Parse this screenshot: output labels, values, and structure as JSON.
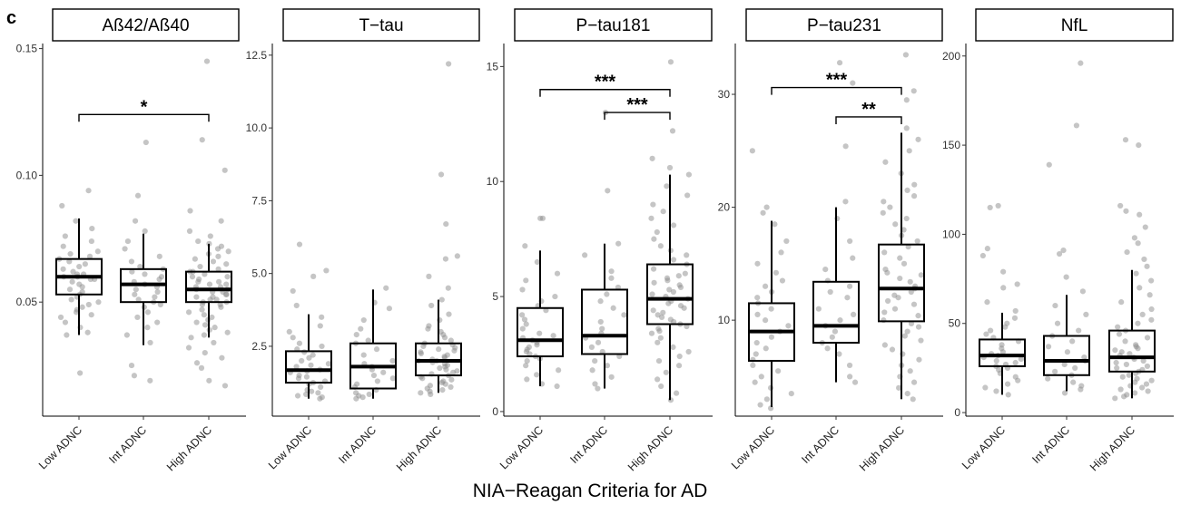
{
  "figure": {
    "panel_letter": "c",
    "xlabel": "NIA−Reagan Criteria for AD",
    "colors": {
      "point": "#8c8c8c",
      "box": "#000000",
      "background": "#ffffff"
    }
  },
  "chart_data": [
    {
      "type": "box",
      "title": "Aß42/Aß40",
      "categories": [
        "Low ADNC",
        "Int ADNC",
        "High ADNC"
      ],
      "ylim": [
        0.005,
        0.152
      ],
      "yticks": [
        0.05,
        0.1,
        0.15
      ],
      "ytick_labels": [
        "0.05",
        "0.10",
        "0.15"
      ],
      "boxes": [
        {
          "category": "Low ADNC",
          "min": 0.037,
          "q1": 0.053,
          "median": 0.06,
          "q3": 0.067,
          "max": 0.083
        },
        {
          "category": "Int ADNC",
          "min": 0.033,
          "q1": 0.05,
          "median": 0.057,
          "q3": 0.063,
          "max": 0.077
        },
        {
          "category": "High ADNC",
          "min": 0.036,
          "q1": 0.05,
          "median": 0.055,
          "q3": 0.062,
          "max": 0.073
        }
      ],
      "points": [
        [
          0.094,
          0.088,
          0.082,
          0.079,
          0.076,
          0.074,
          0.072,
          0.07,
          0.069,
          0.068,
          0.067,
          0.066,
          0.065,
          0.064,
          0.063,
          0.062,
          0.061,
          0.061,
          0.06,
          0.06,
          0.059,
          0.059,
          0.058,
          0.057,
          0.056,
          0.055,
          0.054,
          0.053,
          0.052,
          0.051,
          0.05,
          0.049,
          0.048,
          0.047,
          0.046,
          0.045,
          0.044,
          0.042,
          0.04,
          0.038,
          0.037,
          0.022
        ],
        [
          0.113,
          0.092,
          0.082,
          0.078,
          0.074,
          0.071,
          0.068,
          0.066,
          0.064,
          0.063,
          0.062,
          0.061,
          0.06,
          0.059,
          0.058,
          0.057,
          0.056,
          0.055,
          0.054,
          0.053,
          0.052,
          0.051,
          0.05,
          0.049,
          0.048,
          0.046,
          0.044,
          0.042,
          0.04,
          0.037,
          0.034,
          0.025,
          0.021,
          0.019
        ],
        [
          0.145,
          0.114,
          0.102,
          0.086,
          0.082,
          0.078,
          0.076,
          0.074,
          0.073,
          0.072,
          0.071,
          0.07,
          0.069,
          0.068,
          0.067,
          0.066,
          0.065,
          0.064,
          0.063,
          0.062,
          0.062,
          0.061,
          0.06,
          0.06,
          0.059,
          0.058,
          0.058,
          0.057,
          0.057,
          0.056,
          0.056,
          0.055,
          0.055,
          0.054,
          0.054,
          0.053,
          0.053,
          0.052,
          0.052,
          0.051,
          0.051,
          0.05,
          0.05,
          0.049,
          0.049,
          0.048,
          0.047,
          0.046,
          0.045,
          0.044,
          0.043,
          0.042,
          0.041,
          0.04,
          0.039,
          0.038,
          0.037,
          0.036,
          0.034,
          0.032,
          0.03,
          0.028,
          0.026,
          0.024,
          0.019,
          0.017
        ]
      ],
      "significance": [
        {
          "from": "Low ADNC",
          "to": "High ADNC",
          "y": 0.124,
          "label": "*"
        }
      ]
    },
    {
      "type": "box",
      "title": "T−tau",
      "categories": [
        "Low ADNC",
        "Int ADNC",
        "High ADNC"
      ],
      "ylim": [
        0.1,
        12.9
      ],
      "yticks": [
        2.5,
        5.0,
        7.5,
        10.0,
        12.5
      ],
      "ytick_labels": [
        "2.5",
        "5.0",
        "7.5",
        "10.0",
        "12.5"
      ],
      "boxes": [
        {
          "category": "Low ADNC",
          "min": 0.7,
          "q1": 1.25,
          "median": 1.68,
          "q3": 2.33,
          "max": 3.6
        },
        {
          "category": "Int ADNC",
          "min": 0.7,
          "q1": 1.05,
          "median": 1.8,
          "q3": 2.6,
          "max": 4.45
        },
        {
          "category": "High ADNC",
          "min": 0.9,
          "q1": 1.5,
          "median": 2.0,
          "q3": 2.6,
          "max": 4.1
        }
      ],
      "points": [
        [
          6.0,
          5.1,
          4.9,
          4.4,
          3.9,
          3.5,
          3.2,
          3.0,
          2.8,
          2.6,
          2.5,
          2.4,
          2.3,
          2.2,
          2.1,
          2.0,
          1.9,
          1.85,
          1.8,
          1.7,
          1.65,
          1.6,
          1.5,
          1.45,
          1.4,
          1.3,
          1.25,
          1.2,
          1.1,
          1.0,
          0.95,
          0.9,
          0.85,
          0.8,
          0.75,
          0.7
        ],
        [
          4.5,
          4.0,
          3.8,
          3.4,
          3.1,
          2.9,
          2.7,
          2.6,
          2.4,
          2.2,
          2.0,
          1.9,
          1.8,
          1.7,
          1.6,
          1.5,
          1.4,
          1.3,
          1.2,
          1.1,
          1.0,
          0.9,
          0.85,
          0.8,
          0.75,
          0.7
        ],
        [
          12.2,
          8.4,
          6.7,
          5.6,
          5.5,
          4.9,
          4.5,
          4.1,
          3.9,
          3.6,
          3.4,
          3.2,
          3.1,
          3.0,
          2.9,
          2.8,
          2.7,
          2.6,
          2.55,
          2.5,
          2.45,
          2.4,
          2.35,
          2.3,
          2.25,
          2.2,
          2.15,
          2.1,
          2.05,
          2.0,
          2.0,
          1.95,
          1.9,
          1.85,
          1.8,
          1.75,
          1.7,
          1.65,
          1.6,
          1.55,
          1.5,
          1.45,
          1.4,
          1.35,
          1.3,
          1.25,
          1.2,
          1.15,
          1.1,
          1.05,
          1.0,
          0.95,
          0.9,
          0.85
        ]
      ],
      "significance": []
    },
    {
      "type": "box",
      "title": "P−tau181",
      "categories": [
        "Low ADNC",
        "Int ADNC",
        "High ADNC"
      ],
      "ylim": [
        -0.2,
        16.0
      ],
      "yticks": [
        0,
        5,
        10,
        15
      ],
      "ytick_labels": [
        "0",
        "5",
        "10",
        "15"
      ],
      "boxes": [
        {
          "category": "Low ADNC",
          "min": 1.1,
          "q1": 2.4,
          "median": 3.1,
          "q3": 4.5,
          "max": 7.0
        },
        {
          "category": "Int ADNC",
          "min": 1.0,
          "q1": 2.5,
          "median": 3.3,
          "q3": 5.3,
          "max": 7.3
        },
        {
          "category": "High ADNC",
          "min": 0.5,
          "q1": 3.8,
          "median": 4.9,
          "q3": 6.4,
          "max": 10.3
        }
      ],
      "points": [
        [
          8.4,
          8.4,
          7.2,
          6.5,
          6.0,
          5.7,
          5.3,
          5.0,
          4.8,
          4.6,
          4.4,
          4.2,
          4.0,
          3.8,
          3.6,
          3.4,
          3.3,
          3.2,
          3.1,
          3.0,
          2.9,
          2.8,
          2.7,
          2.6,
          2.5,
          2.4,
          2.3,
          2.2,
          2.0,
          1.8,
          1.6,
          1.4,
          1.2,
          1.1
        ],
        [
          13.0,
          9.6,
          7.3,
          6.8,
          6.1,
          5.8,
          5.4,
          5.1,
          4.8,
          4.5,
          4.2,
          3.9,
          3.6,
          3.4,
          3.2,
          3.0,
          2.8,
          2.6,
          2.4,
          2.2,
          2.0,
          1.8,
          1.5,
          1.2,
          1.0
        ],
        [
          15.2,
          12.2,
          11.0,
          10.6,
          10.3,
          9.8,
          9.4,
          9.0,
          8.7,
          8.4,
          8.1,
          7.8,
          7.5,
          7.2,
          7.0,
          6.8,
          6.6,
          6.4,
          6.2,
          6.0,
          5.9,
          5.8,
          5.7,
          5.6,
          5.5,
          5.4,
          5.3,
          5.2,
          5.1,
          5.0,
          4.9,
          4.8,
          4.7,
          4.6,
          4.5,
          4.4,
          4.3,
          4.2,
          4.1,
          4.0,
          3.9,
          3.8,
          3.7,
          3.6,
          3.5,
          3.4,
          3.2,
          3.0,
          2.8,
          2.6,
          2.4,
          2.2,
          2.0,
          1.7,
          1.4,
          1.1,
          0.8,
          0.5
        ]
      ],
      "significance": [
        {
          "from": "Low ADNC",
          "to": "High ADNC",
          "y": 14.0,
          "label": "***"
        },
        {
          "from": "Int ADNC",
          "to": "High ADNC",
          "y": 13.0,
          "label": "***"
        }
      ]
    },
    {
      "type": "box",
      "title": "P−tau231",
      "categories": [
        "Low ADNC",
        "Int ADNC",
        "High ADNC"
      ],
      "ylim": [
        1.5,
        34.5
      ],
      "yticks": [
        10,
        20,
        30
      ],
      "ytick_labels": [
        "10",
        "20",
        "30"
      ],
      "boxes": [
        {
          "category": "Low ADNC",
          "min": 2.3,
          "q1": 6.4,
          "median": 9.0,
          "q3": 11.5,
          "max": 18.8
        },
        {
          "category": "Int ADNC",
          "min": 4.5,
          "q1": 8.0,
          "median": 9.5,
          "q3": 13.4,
          "max": 20.0
        },
        {
          "category": "High ADNC",
          "min": 3.0,
          "q1": 9.9,
          "median": 12.8,
          "q3": 16.7,
          "max": 26.6
        }
      ],
      "points": [
        [
          25.0,
          20.0,
          19.5,
          18.5,
          17.0,
          16.0,
          15.0,
          14.2,
          13.5,
          13.0,
          12.5,
          12.0,
          11.5,
          11.0,
          10.5,
          10.0,
          9.5,
          9.0,
          8.5,
          8.0,
          7.5,
          7.0,
          6.5,
          6.0,
          5.5,
          5.0,
          4.5,
          4.0,
          3.5,
          3.0,
          2.5,
          2.2
        ],
        [
          32.8,
          31.0,
          25.4,
          20.5,
          19.0,
          17.0,
          15.5,
          14.5,
          13.5,
          13.0,
          12.5,
          12.0,
          11.0,
          10.5,
          10.0,
          9.5,
          9.0,
          8.5,
          8.0,
          7.5,
          7.0,
          6.0,
          5.0,
          4.5
        ],
        [
          33.5,
          30.3,
          29.5,
          27.0,
          26.0,
          25.0,
          24.0,
          23.0,
          22.0,
          21.5,
          21.0,
          20.5,
          20.0,
          19.5,
          19.0,
          18.5,
          18.0,
          17.5,
          17.0,
          16.5,
          16.0,
          15.5,
          15.0,
          14.5,
          14.2,
          14.0,
          13.7,
          13.4,
          13.0,
          12.8,
          12.5,
          12.2,
          12.0,
          11.7,
          11.4,
          11.0,
          10.7,
          10.4,
          10.0,
          9.7,
          9.4,
          9.0,
          8.6,
          8.2,
          7.8,
          7.4,
          7.0,
          6.5,
          6.0,
          5.5,
          5.0,
          4.5,
          4.0,
          3.5,
          3.0
        ]
      ],
      "significance": [
        {
          "from": "Low ADNC",
          "to": "High ADNC",
          "y": 30.6,
          "label": "***"
        },
        {
          "from": "Int ADNC",
          "to": "High ADNC",
          "y": 28.0,
          "label": "**"
        }
      ]
    },
    {
      "type": "box",
      "title": "NfL",
      "categories": [
        "Low ADNC",
        "Int ADNC",
        "High ADNC"
      ],
      "ylim": [
        -2,
        207
      ],
      "yticks": [
        0,
        50,
        100,
        150,
        200
      ],
      "ytick_labels": [
        "0",
        "50",
        "100",
        "150",
        "200"
      ],
      "boxes": [
        {
          "category": "Low ADNC",
          "min": 10,
          "q1": 26,
          "median": 32,
          "q3": 41,
          "max": 56
        },
        {
          "category": "Int ADNC",
          "min": 12,
          "q1": 21,
          "median": 29,
          "q3": 43,
          "max": 66
        },
        {
          "category": "High ADNC",
          "min": 8,
          "q1": 23,
          "median": 31,
          "q3": 46,
          "max": 80
        }
      ],
      "points": [
        [
          116,
          115,
          92,
          88,
          79,
          72,
          70,
          62,
          57,
          53,
          50,
          48,
          46,
          44,
          42,
          40,
          38,
          36,
          34,
          33,
          32,
          31,
          30,
          29,
          28,
          27,
          26,
          25,
          24,
          22,
          20,
          18,
          16,
          14,
          12,
          10
        ],
        [
          196,
          161,
          139,
          91,
          89,
          76,
          68,
          60,
          55,
          50,
          46,
          43,
          40,
          37,
          34,
          31,
          29,
          27,
          25,
          23,
          21,
          19,
          17,
          15,
          13,
          11
        ],
        [
          153,
          150,
          116,
          113,
          111,
          104,
          98,
          95,
          90,
          86,
          82,
          78,
          74,
          70,
          66,
          62,
          58,
          55,
          52,
          50,
          48,
          46,
          44,
          42,
          40,
          38,
          37,
          36,
          35,
          34,
          33,
          32,
          31,
          30,
          29,
          28,
          27,
          26,
          25,
          24,
          23,
          22,
          21,
          20,
          19,
          18,
          17,
          16,
          15,
          14,
          13,
          12,
          11,
          10,
          9,
          8
        ]
      ],
      "significance": []
    }
  ]
}
